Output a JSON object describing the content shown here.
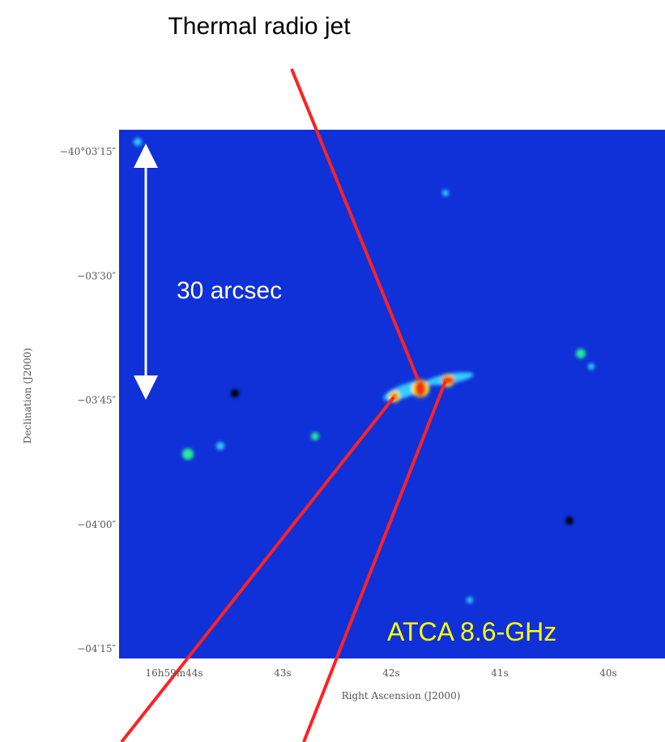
{
  "header": {
    "title": "Thermal radio jet"
  },
  "image": {
    "scale_label": "30 arcsec",
    "instrument_label": "ATCA 8.6-GHz"
  },
  "axes": {
    "y_label": "Declination (J2000)",
    "x_label": "Right Ascension (J2000)",
    "y_ticks": [
      "−40°03′15″",
      "−03′30″",
      "−03′45″",
      "−04′00″",
      "−04′15″"
    ],
    "x_ticks": [
      "16h59m44s",
      "43s",
      "42s",
      "41s",
      "40s"
    ]
  }
}
